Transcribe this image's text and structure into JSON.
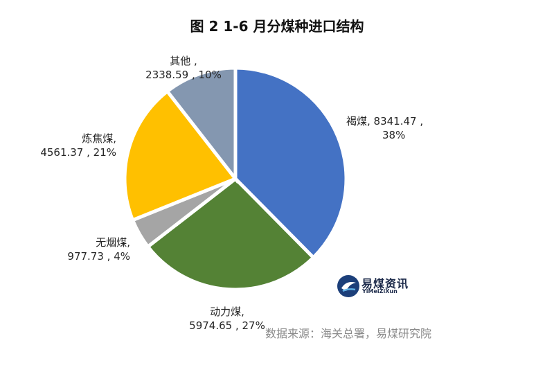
{
  "chart_data": {
    "type": "pie",
    "title": "图 2 1-6 月分煤种进口结构",
    "series": [
      {
        "name": "褐煤",
        "value": 8341.47,
        "percent": "38%",
        "color": "#4472C4"
      },
      {
        "name": "动力煤",
        "value": 5974.65,
        "percent": "27%",
        "color": "#548235"
      },
      {
        "name": "无烟煤",
        "value": 977.73,
        "percent": "4%",
        "color": "#A5A5A5"
      },
      {
        "name": "炼焦煤",
        "value": 4561.37,
        "percent": "21%",
        "color": "#FFC000"
      },
      {
        "name": "其他",
        "value": 2338.59,
        "percent": "10%",
        "color": "#8497B0"
      }
    ],
    "labels": [
      {
        "line1": "褐煤, 8341.47 ,",
        "line2": "38%"
      },
      {
        "line1": "动力煤,",
        "line2": "5974.65 , 27%"
      },
      {
        "line1": "无烟煤,",
        "line2": "977.73 , 4%"
      },
      {
        "line1": "炼焦煤,",
        "line2": "4561.37 , 21%"
      },
      {
        "line1": "其他 ,",
        "line2": "2338.59 , 10%"
      }
    ]
  },
  "logo": {
    "name_cn": "易煤资讯",
    "name_en": "YiMeiZiXun"
  },
  "source": "数据来源：海关总署，易煤研究院"
}
